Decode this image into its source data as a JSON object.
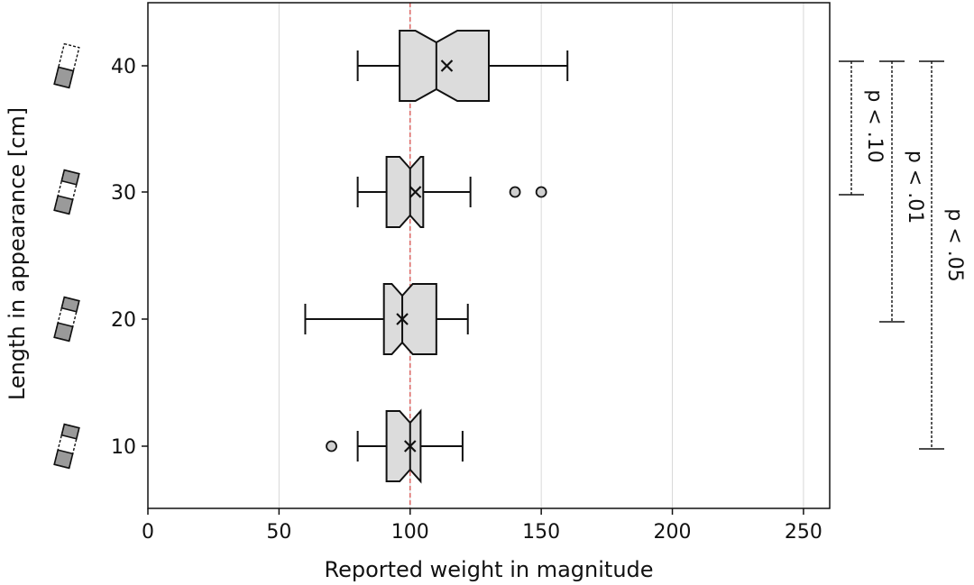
{
  "chart_data": {
    "type": "boxplot",
    "orientation": "horizontal",
    "notched": true,
    "xlabel": "Reported weight in magnitude",
    "ylabel": "Length in appearance [cm]",
    "xlim": [
      0,
      260
    ],
    "xticks": [
      0,
      50,
      100,
      150,
      200,
      250
    ],
    "xtick_labels": [
      "0",
      "50",
      "100",
      "150",
      "200",
      "250"
    ],
    "grid": "vertical",
    "reference_line": {
      "x": 100,
      "color": "#d9534f",
      "style": "dashed"
    },
    "box_color": "#dcdcdc",
    "categories": [
      "10",
      "20",
      "30",
      "40"
    ],
    "boxes": [
      {
        "category": "10",
        "whisker_low": 80,
        "q1": 91,
        "median": 100,
        "q3": 104,
        "whisker_high": 120,
        "mean": 100,
        "notch_low": 96,
        "notch_high": 104,
        "outliers": [
          70
        ]
      },
      {
        "category": "20",
        "whisker_low": 60,
        "q1": 90,
        "median": 97,
        "q3": 110,
        "whisker_high": 122,
        "mean": 97,
        "notch_low": 93,
        "notch_high": 101,
        "outliers": []
      },
      {
        "category": "30",
        "whisker_low": 80,
        "q1": 91,
        "median": 100,
        "q3": 105,
        "whisker_high": 123,
        "mean": 102,
        "notch_low": 96,
        "notch_high": 104,
        "outliers": [
          140,
          150
        ]
      },
      {
        "category": "40",
        "whisker_low": 80,
        "q1": 96,
        "median": 110,
        "q3": 130,
        "whisker_high": 160,
        "mean": 114,
        "notch_low": 102,
        "notch_high": 118,
        "outliers": []
      }
    ],
    "significance": [
      {
        "label": "p < .10",
        "from": "30",
        "to": "40"
      },
      {
        "label": "p < .01",
        "from": "20",
        "to": "40"
      },
      {
        "label": "p < .05",
        "from": "10",
        "to": "40"
      }
    ]
  }
}
